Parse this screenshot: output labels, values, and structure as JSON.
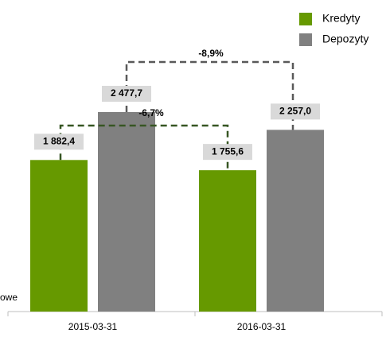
{
  "chart_data": {
    "type": "bar",
    "categories": [
      "2015-03-31",
      "2016-03-31"
    ],
    "series": [
      {
        "name": "Kredyty",
        "color": "#669900",
        "values": [
          1882.4,
          1755.6
        ],
        "value_labels": [
          "1 882,4",
          "1 755,6"
        ]
      },
      {
        "name": "Depozyty",
        "color": "#808080",
        "values": [
          2477.7,
          2257.0
        ],
        "value_labels": [
          "2 477,7",
          "2 257,0"
        ]
      }
    ],
    "annotations": [
      "-8,9%",
      "-6,7%",
      "owe"
    ],
    "legend": "top-right"
  }
}
